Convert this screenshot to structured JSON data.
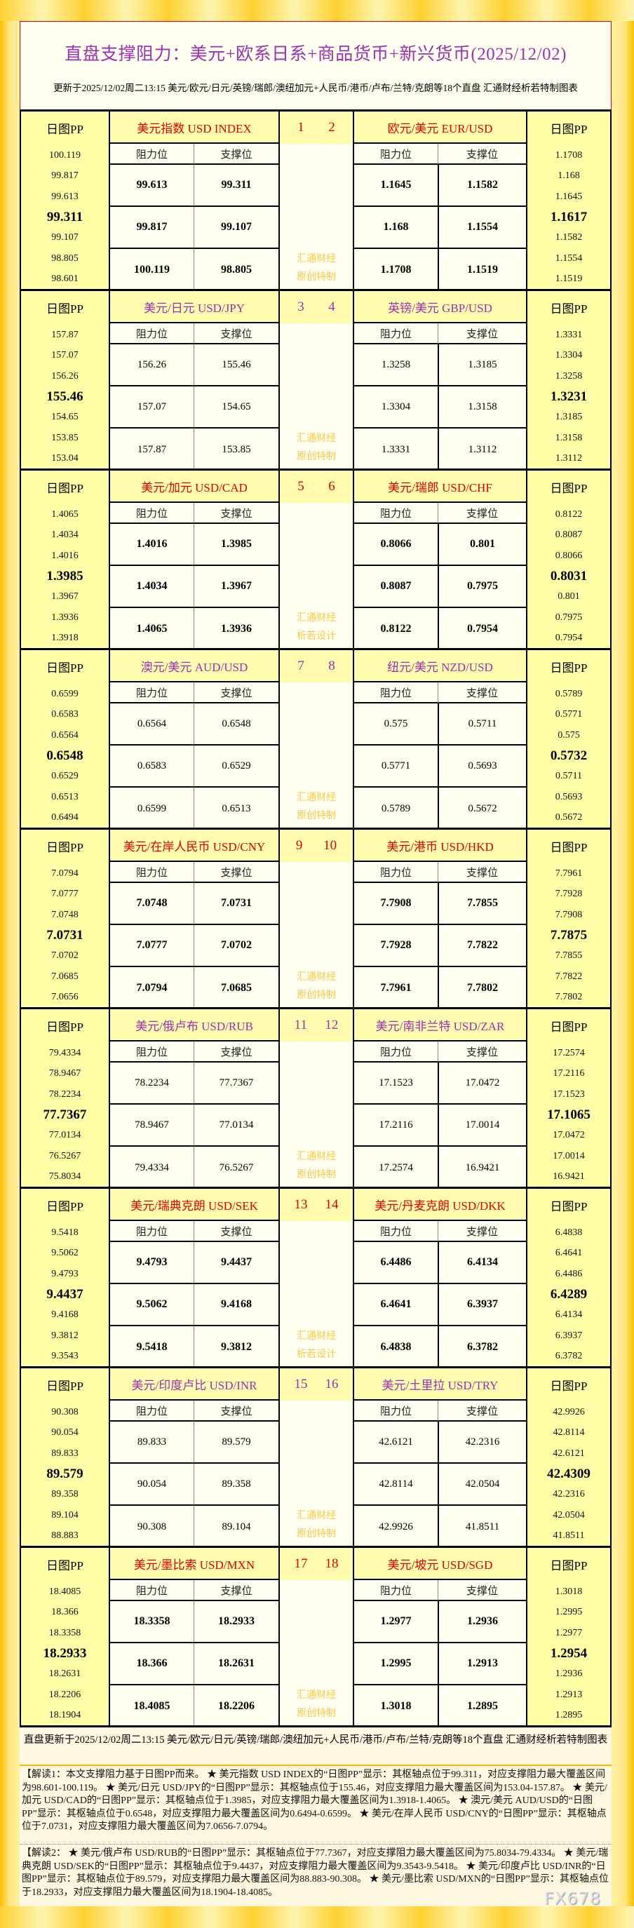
{
  "header": {
    "title": "直盘支撑阻力：美元+欧系日系+商品货币+新兴货币(2025/12/02)",
    "subtitle": "更新于2025/12/02周二13:15 美元/欧元/日元/英镑/瑞郎/澳纽加元+人民币/港币/卢布/兰特/克朗等18个直盘 汇通财经析若特制图表"
  },
  "labels": {
    "pp": "日图PP",
    "resistance": "阻力位",
    "support": "支撑位",
    "watermark_top": "汇通财经"
  },
  "colors": {
    "red": "#dd0000",
    "purple": "#9b30b0",
    "gold": "#ffd230",
    "watermark": "#f8c850"
  },
  "blocks": [
    {
      "style": "red",
      "watermark_bottom": "原创特制",
      "left": {
        "num": "1",
        "pair": "美元指数 USD INDEX",
        "pp": [
          "100.119",
          "99.817",
          "99.613",
          "99.311",
          "99.107",
          "98.805",
          "98.601"
        ],
        "res": [
          "99.613",
          "99.817",
          "100.119"
        ],
        "sup": [
          "99.311",
          "99.107",
          "98.805"
        ]
      },
      "right": {
        "num": "2",
        "pair": "欧元/美元 EUR/USD",
        "pp": [
          "1.1708",
          "1.168",
          "1.1645",
          "1.1617",
          "1.1582",
          "1.1554",
          "1.1519"
        ],
        "res": [
          "1.1645",
          "1.168",
          "1.1708"
        ],
        "sup": [
          "1.1582",
          "1.1554",
          "1.1519"
        ]
      }
    },
    {
      "style": "purple",
      "watermark_bottom": "原创特制",
      "left": {
        "num": "3",
        "pair": "美元/日元 USD/JPY",
        "pp": [
          "157.87",
          "157.07",
          "156.26",
          "155.46",
          "154.65",
          "153.85",
          "153.04"
        ],
        "res": [
          "156.26",
          "157.07",
          "157.87"
        ],
        "sup": [
          "155.46",
          "154.65",
          "153.85"
        ]
      },
      "right": {
        "num": "4",
        "pair": "英镑/美元 GBP/USD",
        "pp": [
          "1.3331",
          "1.3304",
          "1.3258",
          "1.3231",
          "1.3185",
          "1.3158",
          "1.3112"
        ],
        "res": [
          "1.3258",
          "1.3304",
          "1.3331"
        ],
        "sup": [
          "1.3185",
          "1.3158",
          "1.3112"
        ]
      }
    },
    {
      "style": "red",
      "watermark_bottom": "析若设计",
      "left": {
        "num": "5",
        "pair": "美元/加元 USD/CAD",
        "pp": [
          "1.4065",
          "1.4034",
          "1.4016",
          "1.3985",
          "1.3967",
          "1.3936",
          "1.3918"
        ],
        "res": [
          "1.4016",
          "1.4034",
          "1.4065"
        ],
        "sup": [
          "1.3985",
          "1.3967",
          "1.3936"
        ]
      },
      "right": {
        "num": "6",
        "pair": "美元/瑞郎 USD/CHF",
        "pp": [
          "0.8122",
          "0.8087",
          "0.8066",
          "0.8031",
          "0.801",
          "0.7975",
          "0.7954"
        ],
        "res": [
          "0.8066",
          "0.8087",
          "0.8122"
        ],
        "sup": [
          "0.801",
          "0.7975",
          "0.7954"
        ]
      }
    },
    {
      "style": "purple",
      "watermark_bottom": "原创特制",
      "left": {
        "num": "7",
        "pair": "澳元/美元 AUD/USD",
        "pp": [
          "0.6599",
          "0.6583",
          "0.6564",
          "0.6548",
          "0.6529",
          "0.6513",
          "0.6494"
        ],
        "res": [
          "0.6564",
          "0.6583",
          "0.6599"
        ],
        "sup": [
          "0.6548",
          "0.6529",
          "0.6513"
        ]
      },
      "right": {
        "num": "8",
        "pair": "纽元/美元 NZD/USD",
        "pp": [
          "0.5789",
          "0.5771",
          "0.575",
          "0.5732",
          "0.5711",
          "0.5693",
          "0.5672"
        ],
        "res": [
          "0.575",
          "0.5771",
          "0.5789"
        ],
        "sup": [
          "0.5711",
          "0.5693",
          "0.5672"
        ]
      }
    },
    {
      "style": "red",
      "watermark_bottom": "原创特制",
      "left": {
        "num": "9",
        "pair": "美元/在岸人民币 USD/CNY",
        "pp": [
          "7.0794",
          "7.0777",
          "7.0748",
          "7.0731",
          "7.0702",
          "7.0685",
          "7.0656"
        ],
        "res": [
          "7.0748",
          "7.0777",
          "7.0794"
        ],
        "sup": [
          "7.0731",
          "7.0702",
          "7.0685"
        ]
      },
      "right": {
        "num": "10",
        "pair": "美元/港币 USD/HKD",
        "pp": [
          "7.7961",
          "7.7928",
          "7.7908",
          "7.7875",
          "7.7855",
          "7.7822",
          "7.7802"
        ],
        "res": [
          "7.7908",
          "7.7928",
          "7.7961"
        ],
        "sup": [
          "7.7855",
          "7.7822",
          "7.7802"
        ]
      }
    },
    {
      "style": "purple",
      "watermark_bottom": "原创特制",
      "left": {
        "num": "11",
        "pair": "美元/俄卢布 USD/RUB",
        "pp": [
          "79.4334",
          "78.9467",
          "78.2234",
          "77.7367",
          "77.0134",
          "76.5267",
          "75.8034"
        ],
        "res": [
          "78.2234",
          "78.9467",
          "79.4334"
        ],
        "sup": [
          "77.7367",
          "77.0134",
          "76.5267"
        ]
      },
      "right": {
        "num": "12",
        "pair": "美元/南非兰特 USD/ZAR",
        "pp": [
          "17.2574",
          "17.2116",
          "17.1523",
          "17.1065",
          "17.0472",
          "17.0014",
          "16.9421"
        ],
        "res": [
          "17.1523",
          "17.2116",
          "17.2574"
        ],
        "sup": [
          "17.0472",
          "17.0014",
          "16.9421"
        ]
      }
    },
    {
      "style": "red",
      "watermark_bottom": "析若设计",
      "left": {
        "num": "13",
        "pair": "美元/瑞典克朗 USD/SEK",
        "pp": [
          "9.5418",
          "9.5062",
          "9.4793",
          "9.4437",
          "9.4168",
          "9.3812",
          "9.3543"
        ],
        "res": [
          "9.4793",
          "9.5062",
          "9.5418"
        ],
        "sup": [
          "9.4437",
          "9.4168",
          "9.3812"
        ]
      },
      "right": {
        "num": "14",
        "pair": "美元/丹麦克朗 USD/DKK",
        "pp": [
          "6.4838",
          "6.4641",
          "6.4486",
          "6.4289",
          "6.4134",
          "6.3937",
          "6.3782"
        ],
        "res": [
          "6.4486",
          "6.4641",
          "6.4838"
        ],
        "sup": [
          "6.4134",
          "6.3937",
          "6.3782"
        ]
      }
    },
    {
      "style": "purple",
      "watermark_bottom": "原创特制",
      "left": {
        "num": "15",
        "pair": "美元/印度卢比 USD/INR",
        "pp": [
          "90.308",
          "90.054",
          "89.833",
          "89.579",
          "89.358",
          "89.104",
          "88.883"
        ],
        "res": [
          "89.833",
          "90.054",
          "90.308"
        ],
        "sup": [
          "89.579",
          "89.358",
          "89.104"
        ]
      },
      "right": {
        "num": "16",
        "pair": "美元/土里拉 USD/TRY",
        "pp": [
          "42.9926",
          "42.8114",
          "42.6121",
          "42.4309",
          "42.2316",
          "42.0504",
          "41.8511"
        ],
        "res": [
          "42.6121",
          "42.8114",
          "42.9926"
        ],
        "sup": [
          "42.2316",
          "42.0504",
          "41.8511"
        ]
      }
    },
    {
      "style": "red",
      "watermark_bottom": "原创特制",
      "left": {
        "num": "17",
        "pair": "美元/墨比索 USD/MXN",
        "pp": [
          "18.4085",
          "18.366",
          "18.3358",
          "18.2933",
          "18.2631",
          "18.2206",
          "18.1904"
        ],
        "res": [
          "18.3358",
          "18.366",
          "18.4085"
        ],
        "sup": [
          "18.2933",
          "18.2631",
          "18.2206"
        ]
      },
      "right": {
        "num": "18",
        "pair": "美元/坡元 USD/SGD",
        "pp": [
          "1.3018",
          "1.2995",
          "1.2977",
          "1.2954",
          "1.2936",
          "1.2913",
          "1.2895"
        ],
        "res": [
          "1.2977",
          "1.2995",
          "1.3018"
        ],
        "sup": [
          "1.2936",
          "1.2913",
          "1.2895"
        ]
      }
    }
  ],
  "footer": {
    "update": "直盘更新于2025/12/02周二13:15 美元/欧元/日元/英镑/瑞郎/澳纽加元+人民币/港币/卢布/兰特/克朗等18个直盘 汇通财经析若特制图表",
    "note1": "【解读1：本文支撑阻力基于日图PP而来。 ★ 美元指数 USD INDEX的“日图PP”显示：其枢轴点位于99.311，对应支撑阻力最大覆盖区间为98.601-100.119。 ★ 美元/日元 USD/JPY的“日图PP”显示：其枢轴点位于155.46，对应支撑阻力最大覆盖区间为153.04-157.87。 ★ 美元/加元 USD/CAD的“日图PP”显示：其枢轴点位于1.3985，对应支撑阻力最大覆盖区间为1.3918-1.4065。 ★ 澳元/美元 AUD/USD的“日图PP”显示：其枢轴点位于0.6548，对应支撑阻力最大覆盖区间为0.6494-0.6599。 ★ 美元/在岸人民币 USD/CNY的“日图PP”显示：其枢轴点位于7.0731，对应支撑阻力最大覆盖区间为7.0656-7.0794。",
    "note2": "【解读2： ★ 美元/俄卢布 USD/RUB的“日图PP”显示：其枢轴点位于77.7367，对应支撑阻力最大覆盖区间为75.8034-79.4334。 ★ 美元/瑞典克朗 USD/SEK的“日图PP”显示：其枢轴点位于9.4437，对应支撑阻力最大覆盖区间为9.3543-9.5418。 ★ 美元/印度卢比 USD/INR的“日图PP”显示：其枢轴点位于89.579，对应支撑阻力最大覆盖区间为88.883-90.308。 ★ 美元/墨比索 USD/MXN的“日图PP”显示：其枢轴点位于18.2933，对应支撑阻力最大覆盖区间为18.1904-18.4085。",
    "logo": "FX678"
  }
}
